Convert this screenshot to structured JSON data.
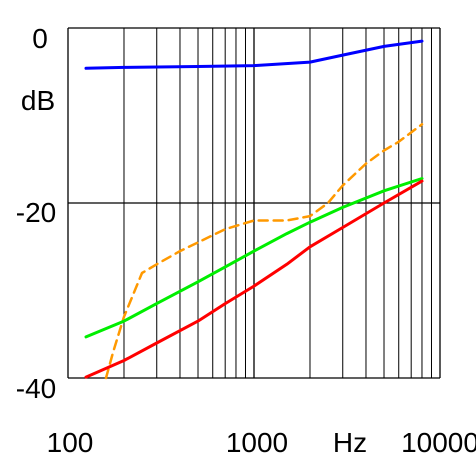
{
  "chart_data": {
    "type": "line",
    "title": "",
    "xlabel": "Hz",
    "ylabel": "dB",
    "x_scale": "log",
    "xlim": [
      100,
      10000
    ],
    "ylim": [
      -40,
      0
    ],
    "grid": true,
    "x_ticks": [
      "100",
      "1000",
      "10000"
    ],
    "y_ticks": [
      "0",
      "-20",
      "-40"
    ],
    "series": [
      {
        "color": "#0000ff",
        "style": "solid",
        "x": [
          125,
          200,
          500,
          1000,
          2000,
          3000,
          5000,
          8000
        ],
        "y": [
          -4.6,
          -4.5,
          -4.4,
          -4.3,
          -3.9,
          -3.1,
          -2.1,
          -1.5
        ]
      },
      {
        "color": "#ff9900",
        "style": "dashed",
        "x": [
          160,
          175,
          200,
          250,
          300,
          400,
          500,
          700,
          1000,
          1500,
          2000,
          2500,
          3000,
          4000,
          5000,
          6000,
          8000
        ],
        "y": [
          -40,
          -37,
          -33,
          -28,
          -27,
          -25.5,
          -24.5,
          -23,
          -22,
          -22,
          -21.5,
          -20,
          -18,
          -15.5,
          -14,
          -13,
          -11
        ]
      },
      {
        "color": "#00ee00",
        "style": "solid",
        "x": [
          125,
          200,
          300,
          500,
          700,
          1000,
          1500,
          2000,
          3000,
          5000,
          8000
        ],
        "y": [
          -35.3,
          -33.5,
          -31.5,
          -29,
          -27.3,
          -25.5,
          -23.5,
          -22.2,
          -20.5,
          -18.6,
          -17.2
        ]
      },
      {
        "color": "#ff0000",
        "style": "solid",
        "x": [
          125,
          200,
          300,
          500,
          700,
          1000,
          1500,
          2000,
          3000,
          5000,
          8000
        ],
        "y": [
          -39.9,
          -38,
          -36,
          -33.5,
          -31.5,
          -29.5,
          -27,
          -25,
          -22.8,
          -20,
          -17.5
        ]
      }
    ]
  }
}
